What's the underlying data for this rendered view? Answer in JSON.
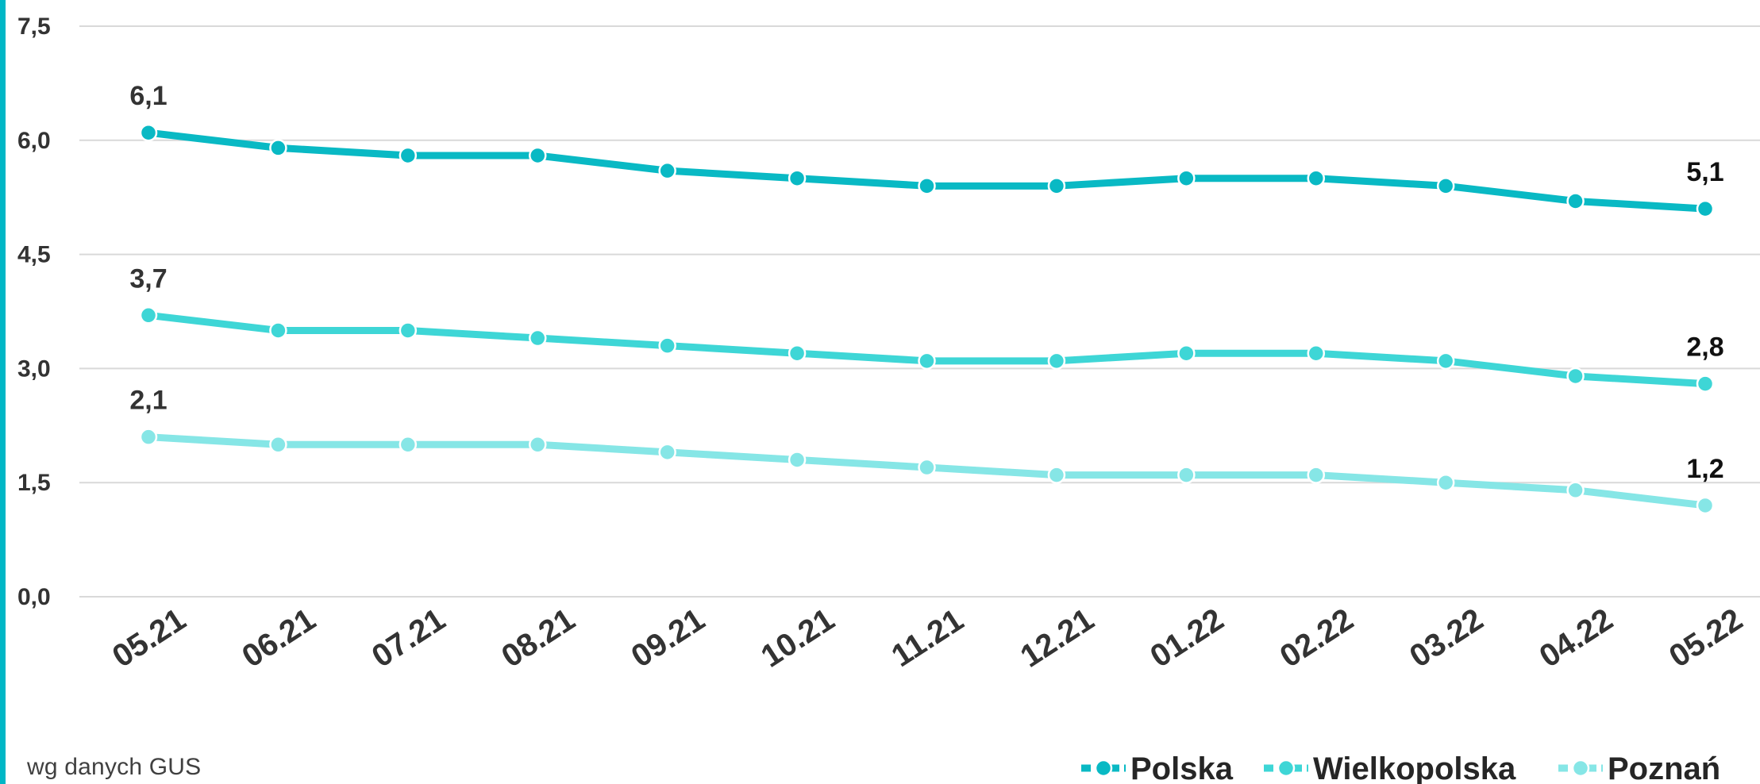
{
  "colors": {
    "accent_bar": "#00B7C6",
    "grid": "#D9D9D9",
    "text": "#333333",
    "Polska": "#09B9C4",
    "Wielkopolska": "#3ED6D6",
    "Poznan": "#86E6E6"
  },
  "source_note": "wg danych GUS",
  "chart_data": {
    "type": "line",
    "title": "",
    "xlabel": "",
    "ylabel": "",
    "ylim": [
      0,
      7.5
    ],
    "yticks": [
      "0,0",
      "1,5",
      "3,0",
      "4,5",
      "6,0",
      "7,5"
    ],
    "ytick_values": [
      0,
      1.5,
      3.0,
      4.5,
      6.0,
      7.5
    ],
    "categories": [
      "05.21",
      "06.21",
      "07.21",
      "08.21",
      "09.21",
      "10.21",
      "11.21",
      "12.21",
      "01.22",
      "02.22",
      "03.22",
      "04.22",
      "05.22"
    ],
    "grid": true,
    "legend_position": "bottom-right",
    "series": [
      {
        "name": "Polska",
        "color_key": "Polska",
        "values": [
          6.1,
          5.9,
          5.8,
          5.8,
          5.6,
          5.5,
          5.4,
          5.4,
          5.5,
          5.5,
          5.4,
          5.2,
          5.1
        ],
        "first_label": "6,1",
        "last_label": "5,1"
      },
      {
        "name": "Wielkopolska",
        "color_key": "Wielkopolska",
        "values": [
          3.7,
          3.5,
          3.5,
          3.4,
          3.3,
          3.2,
          3.1,
          3.1,
          3.2,
          3.2,
          3.1,
          2.9,
          2.8
        ],
        "first_label": "3,7",
        "last_label": "2,8"
      },
      {
        "name": "Poznań",
        "color_key": "Poznan",
        "values": [
          2.1,
          2.0,
          2.0,
          2.0,
          1.9,
          1.8,
          1.7,
          1.6,
          1.6,
          1.6,
          1.5,
          1.4,
          1.2
        ],
        "first_label": "2,1",
        "last_label": "1,2"
      }
    ]
  }
}
